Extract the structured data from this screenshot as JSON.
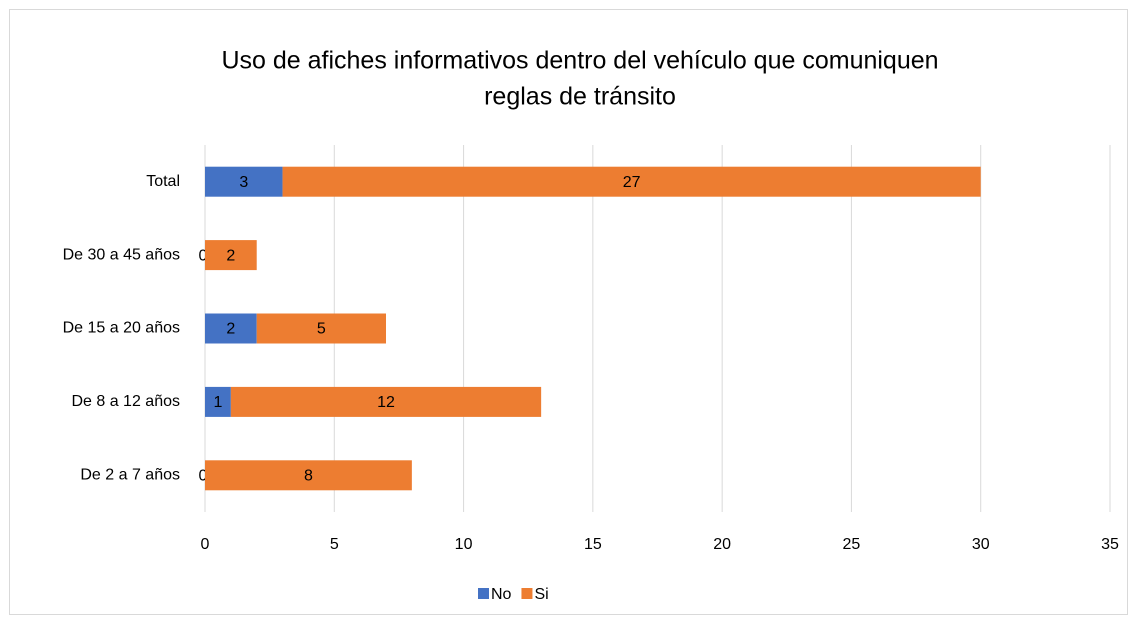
{
  "chart_data": {
    "type": "stacked_barh",
    "title": [
      "Uso de afiches informativos dentro del vehículo que comuniquen",
      "reglas de tránsito"
    ],
    "categories": [
      "De 2 a 7 años",
      "De 8 a 12 años",
      "De 15 a 20 años",
      "De 30 a 45 años",
      "Total"
    ],
    "series": [
      {
        "name": "No",
        "color": "#4472c4",
        "values": [
          0,
          1,
          2,
          0,
          3
        ]
      },
      {
        "name": "Si",
        "color": "#ed7d31",
        "values": [
          8,
          12,
          5,
          2,
          27
        ]
      }
    ],
    "xlim": [
      0,
      35
    ],
    "xticks": [
      0,
      5,
      10,
      15,
      20,
      25,
      30,
      35
    ],
    "grid": true,
    "legend": "bottom"
  }
}
